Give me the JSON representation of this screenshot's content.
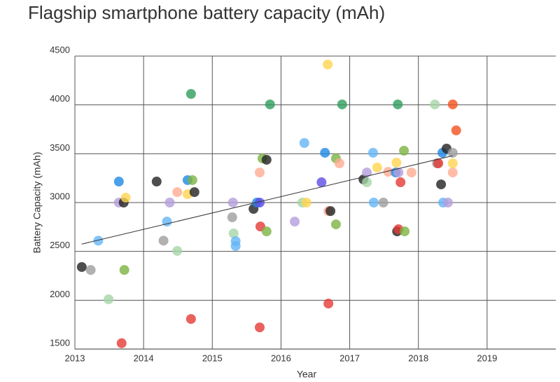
{
  "chart_data": {
    "type": "scatter",
    "title": "Flagship smartphone battery capacity (mAh)",
    "xlabel": "Year",
    "ylabel": "Battery Capacity (mAh)",
    "xlim": [
      2013,
      2020
    ],
    "xticks": [
      2013,
      2014,
      2015,
      2016,
      2017,
      2018,
      2019
    ],
    "ylim": [
      1500,
      4500
    ],
    "yticks": [
      1500,
      2000,
      2500,
      3000,
      3500,
      4000,
      4500
    ],
    "grid": true,
    "x": [
      2013.1,
      2013.23,
      2013.34,
      2013.49,
      2013.64,
      2013.64,
      2013.71,
      2013.74,
      2013.72,
      2013.68,
      2014.19,
      2014.29,
      2014.34,
      2014.38,
      2014.49,
      2014.49,
      2014.64,
      2014.64,
      2014.71,
      2014.74,
      2014.69,
      2014.69,
      2015.3,
      2015.29,
      2015.31,
      2015.34,
      2015.34,
      2015.6,
      2015.65,
      2015.69,
      2015.69,
      2015.73,
      2015.79,
      2015.7,
      2015.79,
      2015.84,
      2015.69,
      2016.2,
      2016.31,
      2016.37,
      2016.34,
      2016.59,
      2016.64,
      2016.69,
      2016.72,
      2016.68,
      2016.69,
      2016.8,
      2016.85,
      2016.8,
      2016.89,
      2017.2,
      2017.25,
      2017.25,
      2017.34,
      2017.4,
      2017.35,
      2017.49,
      2017.56,
      2017.67,
      2017.68,
      2017.71,
      2017.7,
      2017.74,
      2017.69,
      2017.71,
      2017.8,
      2017.79,
      2017.9,
      2018.24,
      2018.27,
      2018.29,
      2018.33,
      2018.35,
      2018.36,
      2018.41,
      2018.43,
      2018.5,
      2018.5,
      2018.5,
      2018.5,
      2018.55
    ],
    "y": [
      2340,
      2310,
      2610,
      2010,
      3215,
      3000,
      3000,
      3050,
      2310,
      1560,
      3215,
      2610,
      2805,
      3000,
      3107,
      2505,
      3230,
      3086,
      3230,
      3107,
      4112,
      1808,
      3000,
      2849,
      2684,
      2605,
      2555,
      2935,
      3000,
      3000,
      3308,
      3452,
      3438,
      2755,
      2705,
      4005,
      1722,
      2805,
      3000,
      3000,
      3610,
      3208,
      3510,
      2913,
      2913,
      4414,
      1966,
      3452,
      3402,
      2777,
      4005,
      3237,
      3208,
      3308,
      3510,
      3359,
      3000,
      3000,
      3315,
      3308,
      3409,
      3308,
      4005,
      3208,
      2705,
      2727,
      2705,
      3531,
      3308,
      4005,
      3402,
      3402,
      3186,
      3510,
      3000,
      3553,
      3000,
      3510,
      3402,
      3308,
      4005,
      3739
    ],
    "colors": [
      "#222222",
      "#9e9e9e",
      "#64b5f6",
      "#a5d6a7",
      "#1e88e5",
      "#b39ddb",
      "#222222",
      "#ffd54f",
      "#7cb342",
      "#e53935",
      "#222222",
      "#9e9e9e",
      "#64b5f6",
      "#b39ddb",
      "#ffab91",
      "#a5d6a7",
      "#1e88e5",
      "#ffd54f",
      "#7cb342",
      "#222222",
      "#2e9e5b",
      "#e53935",
      "#b39ddb",
      "#9e9e9e",
      "#a5d6a7",
      "#64b5f6",
      "#64b5f6",
      "#222222",
      "#1e88e5",
      "#5c4ee5",
      "#ffab91",
      "#7cb342",
      "#222222",
      "#e53935",
      "#7cb342",
      "#2e9e5b",
      "#e53935",
      "#b39ddb",
      "#a5d6a7",
      "#ffd54f",
      "#64b5f6",
      "#5c4ee5",
      "#1e88e5",
      "#ffab91",
      "#222222",
      "#ffd54f",
      "#e53935",
      "#7cb342",
      "#ffab91",
      "#7cb342",
      "#2e9e5b",
      "#222222",
      "#a5d6a7",
      "#b39ddb",
      "#64b5f6",
      "#ffd54f",
      "#64b5f6",
      "#9e9e9e",
      "#ffab91",
      "#1e88e5",
      "#ffd54f",
      "#b39ddb",
      "#2e9e5b",
      "#e53935",
      "#222222",
      "#e53935",
      "#7cb342",
      "#7cb342",
      "#ffab91",
      "#a5d6a7",
      "#9e9e9e",
      "#e53935",
      "#222222",
      "#1e88e5",
      "#64b5f6",
      "#222222",
      "#b39ddb",
      "#9e9e9e",
      "#ffd54f",
      "#ffab91",
      "#f4511e",
      "#f4511e"
    ],
    "trendline": {
      "x": [
        2013.1,
        2018.5
      ],
      "y": [
        2575,
        3480
      ]
    }
  }
}
